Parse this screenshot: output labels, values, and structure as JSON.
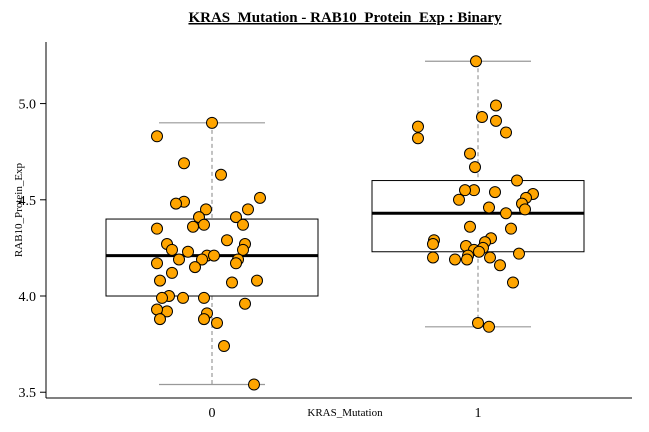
{
  "chart_data": {
    "type": "boxplot",
    "title": "KRAS_Mutation - RAB10_Protein_Exp : Binary",
    "xlabel": "KRAS_Mutation",
    "ylabel": "RAB10_Protein_Exp",
    "ylim": [
      3.47,
      5.32
    ],
    "yticks": [
      {
        "value": 3.5,
        "label": "3.5"
      },
      {
        "value": 4.0,
        "label": "4.0"
      },
      {
        "value": 4.5,
        "label": "4.5"
      },
      {
        "value": 5.0,
        "label": "5.0"
      }
    ],
    "categories": [
      "0",
      "1"
    ],
    "boxes": [
      {
        "category": "0",
        "whisker_low": 3.54,
        "q1": 4.0,
        "median": 4.21,
        "q3": 4.4,
        "whisker_high": 4.9
      },
      {
        "category": "1",
        "whisker_low": 3.84,
        "q1": 4.23,
        "median": 4.43,
        "q3": 4.6,
        "whisker_high": 5.22
      }
    ],
    "points": [
      [
        {
          "x": 0.0,
          "y": 4.9
        },
        {
          "x": -0.55,
          "y": 4.83
        },
        {
          "x": 0.09,
          "y": 4.63
        },
        {
          "x": -0.28,
          "y": 4.69
        },
        {
          "x": 0.48,
          "y": 4.51
        },
        {
          "x": -0.28,
          "y": 4.49
        },
        {
          "x": -0.36,
          "y": 4.48
        },
        {
          "x": -0.06,
          "y": 4.45
        },
        {
          "x": 0.36,
          "y": 4.45
        },
        {
          "x": -0.13,
          "y": 4.41
        },
        {
          "x": 0.24,
          "y": 4.41
        },
        {
          "x": -0.08,
          "y": 4.37
        },
        {
          "x": -0.19,
          "y": 4.36
        },
        {
          "x": -0.55,
          "y": 4.35
        },
        {
          "x": 0.31,
          "y": 4.37
        },
        {
          "x": -0.45,
          "y": 4.27
        },
        {
          "x": 0.33,
          "y": 4.27
        },
        {
          "x": 0.15,
          "y": 4.29
        },
        {
          "x": 0.31,
          "y": 4.24
        },
        {
          "x": -0.24,
          "y": 4.23
        },
        {
          "x": -0.4,
          "y": 4.24
        },
        {
          "x": -0.05,
          "y": 4.21
        },
        {
          "x": 0.02,
          "y": 4.21
        },
        {
          "x": -0.1,
          "y": 4.19
        },
        {
          "x": 0.26,
          "y": 4.19
        },
        {
          "x": -0.33,
          "y": 4.19
        },
        {
          "x": 0.24,
          "y": 4.17
        },
        {
          "x": -0.55,
          "y": 4.17
        },
        {
          "x": -0.17,
          "y": 4.15
        },
        {
          "x": -0.4,
          "y": 4.12
        },
        {
          "x": 0.45,
          "y": 4.08
        },
        {
          "x": -0.52,
          "y": 4.08
        },
        {
          "x": 0.2,
          "y": 4.07
        },
        {
          "x": -0.43,
          "y": 4.0
        },
        {
          "x": -0.5,
          "y": 3.99
        },
        {
          "x": -0.29,
          "y": 3.99
        },
        {
          "x": -0.08,
          "y": 3.99
        },
        {
          "x": 0.33,
          "y": 3.96
        },
        {
          "x": -0.45,
          "y": 3.92
        },
        {
          "x": -0.55,
          "y": 3.93
        },
        {
          "x": -0.05,
          "y": 3.91
        },
        {
          "x": -0.52,
          "y": 3.88
        },
        {
          "x": -0.08,
          "y": 3.88
        },
        {
          "x": 0.05,
          "y": 3.86
        },
        {
          "x": 0.12,
          "y": 3.74
        },
        {
          "x": 0.42,
          "y": 3.54
        }
      ],
      [
        {
          "x": -0.02,
          "y": 5.22
        },
        {
          "x": 0.18,
          "y": 4.99
        },
        {
          "x": 0.04,
          "y": 4.93
        },
        {
          "x": 0.18,
          "y": 4.91
        },
        {
          "x": -0.6,
          "y": 4.88
        },
        {
          "x": 0.28,
          "y": 4.85
        },
        {
          "x": -0.6,
          "y": 4.82
        },
        {
          "x": -0.08,
          "y": 4.74
        },
        {
          "x": -0.03,
          "y": 4.67
        },
        {
          "x": 0.39,
          "y": 4.6
        },
        {
          "x": -0.04,
          "y": 4.55
        },
        {
          "x": 0.17,
          "y": 4.54
        },
        {
          "x": -0.13,
          "y": 4.55
        },
        {
          "x": 0.55,
          "y": 4.53
        },
        {
          "x": 0.48,
          "y": 4.51
        },
        {
          "x": -0.19,
          "y": 4.5
        },
        {
          "x": 0.44,
          "y": 4.48
        },
        {
          "x": 0.11,
          "y": 4.46
        },
        {
          "x": 0.47,
          "y": 4.45
        },
        {
          "x": 0.28,
          "y": 4.43
        },
        {
          "x": -0.08,
          "y": 4.36
        },
        {
          "x": 0.33,
          "y": 4.35
        },
        {
          "x": 0.13,
          "y": 4.3
        },
        {
          "x": -0.44,
          "y": 4.29
        },
        {
          "x": 0.07,
          "y": 4.28
        },
        {
          "x": -0.45,
          "y": 4.27
        },
        {
          "x": -0.12,
          "y": 4.26
        },
        {
          "x": 0.05,
          "y": 4.25
        },
        {
          "x": -0.04,
          "y": 4.24
        },
        {
          "x": 0.01,
          "y": 4.23
        },
        {
          "x": -0.1,
          "y": 4.21
        },
        {
          "x": 0.41,
          "y": 4.22
        },
        {
          "x": -0.45,
          "y": 4.2
        },
        {
          "x": 0.12,
          "y": 4.2
        },
        {
          "x": -0.11,
          "y": 4.19
        },
        {
          "x": -0.23,
          "y": 4.19
        },
        {
          "x": 0.22,
          "y": 4.16
        },
        {
          "x": 0.35,
          "y": 4.07
        },
        {
          "x": 0.0,
          "y": 3.86
        },
        {
          "x": 0.11,
          "y": 3.84
        }
      ]
    ],
    "colors": {
      "point_fill": "#FFA500",
      "point_stroke": "#000000",
      "box_stroke": "#000000",
      "whisker_cap": "#999999",
      "whisker_line": "#999999"
    }
  }
}
